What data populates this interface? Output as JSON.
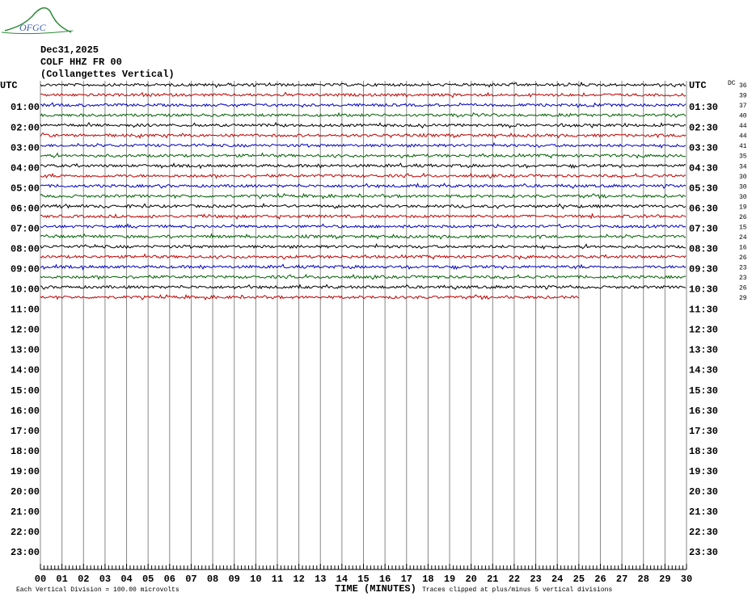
{
  "header": {
    "logo": "OFGC",
    "date": "Dec31,2025",
    "station": "COLF HHZ FR 00",
    "name": "(Collangettes Vertical)"
  },
  "left_labels": [
    "UTC",
    "01:00",
    "02:00",
    "03:00",
    "04:00",
    "05:00",
    "06:00",
    "07:00",
    "08:00",
    "09:00",
    "10:00",
    "11:00",
    "12:00",
    "13:00",
    "14:00",
    "15:00",
    "16:00",
    "17:00",
    "18:00",
    "19:00",
    "20:00",
    "21:00",
    "22:00",
    "23:00"
  ],
  "right_labels": [
    "UTC",
    "01:30",
    "02:30",
    "03:30",
    "04:30",
    "05:30",
    "06:30",
    "07:30",
    "08:30",
    "09:30",
    "10:30",
    "11:30",
    "12:30",
    "13:30",
    "14:30",
    "15:30",
    "16:30",
    "17:30",
    "18:30",
    "19:30",
    "20:30",
    "21:30",
    "22:30",
    "23:30"
  ],
  "dc_label": "DC",
  "dc_values": [
    36,
    39,
    37,
    40,
    44,
    44,
    41,
    35,
    34,
    30,
    30,
    30,
    19,
    26,
    15,
    24,
    16,
    26,
    23,
    23,
    26,
    29
  ],
  "x_ticks": [
    "00",
    "01",
    "02",
    "03",
    "04",
    "05",
    "06",
    "07",
    "08",
    "09",
    "10",
    "11",
    "12",
    "13",
    "14",
    "15",
    "16",
    "17",
    "18",
    "19",
    "20",
    "21",
    "22",
    "23",
    "24",
    "25",
    "26",
    "27",
    "28",
    "29",
    "30"
  ],
  "x_title": "TIME (MINUTES)",
  "footer_left": "Each Vertical Division =  100.00 microvolts",
  "footer_right": "Traces clipped at plus/minus 5 vertical divisions"
}
